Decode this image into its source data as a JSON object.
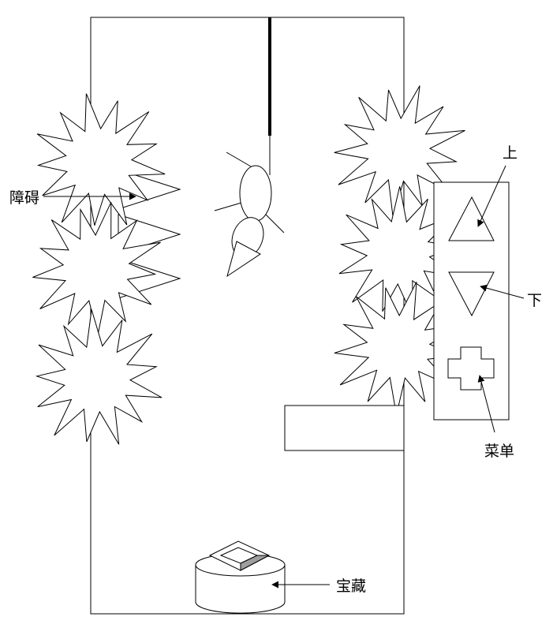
{
  "labels": {
    "obstacle": "障碍",
    "up": "上",
    "down": "下",
    "menu": "菜单",
    "treasure": "宝藏"
  },
  "controls": {
    "up_button_icon": "triangle-up-icon",
    "down_button_icon": "triangle-down-icon",
    "menu_button_icon": "cross-icon"
  },
  "colors": {
    "line": "#000000",
    "fill": "#ffffff",
    "gem_facet": "#9e9e9e"
  }
}
